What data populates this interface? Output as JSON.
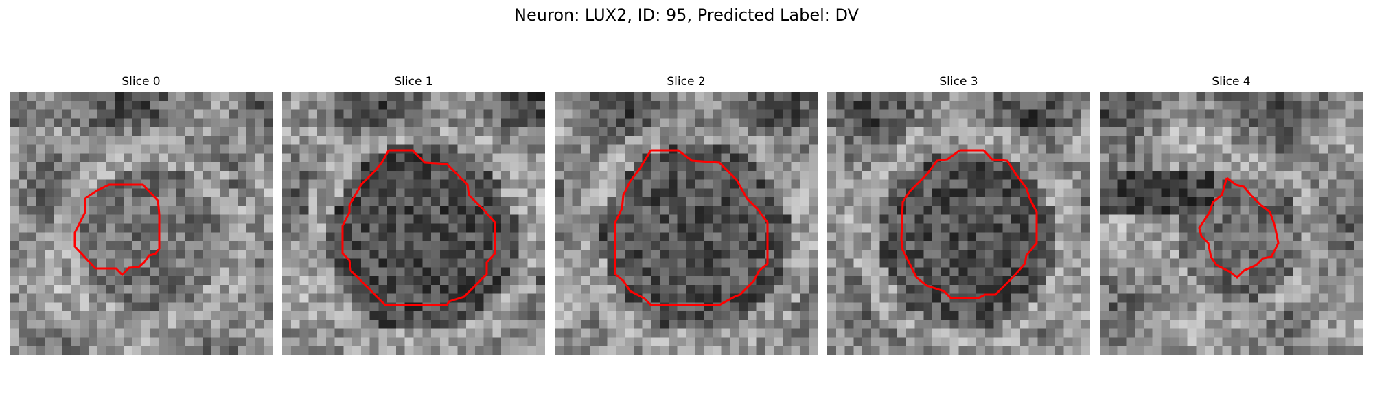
{
  "figure": {
    "title": "Neuron: LUX2, ID: 95, Predicted Label: DV"
  },
  "panels": [
    {
      "title": "Slice 0",
      "ring_shade": 0.18,
      "inner_shade": 0.45,
      "ring": 0.55,
      "contour_color": "#ff0000"
    },
    {
      "title": "Slice 1",
      "ring_shade": 0.22,
      "inner_shade": 0.3,
      "ring": 0.72,
      "contour_color": "#ff0000"
    },
    {
      "title": "Slice 2",
      "ring_shade": 0.2,
      "inner_shade": 0.33,
      "ring": 0.72,
      "contour_color": "#ff0000"
    },
    {
      "title": "Slice 3",
      "ring_shade": 0.2,
      "inner_shade": 0.32,
      "ring": 0.68,
      "contour_color": "#ff0000"
    },
    {
      "title": "Slice 4",
      "ring_shade": 0.25,
      "inner_shade": 0.42,
      "ring": 0.48,
      "contour_color": "#ff0000"
    }
  ],
  "colors": {
    "contour": "#ff0000",
    "colormap": "gray"
  }
}
